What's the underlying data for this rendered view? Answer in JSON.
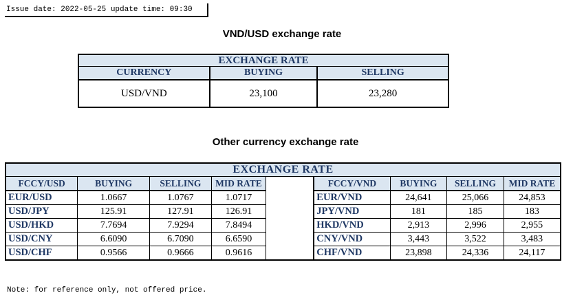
{
  "issue_line": "Issue date: 2022-05-25 update time: 09:30",
  "vnd_usd": {
    "heading": "VND/USD exchange rate",
    "band": "EXCHANGE RATE",
    "columns": [
      "CURRENCY",
      "BUYING",
      "SELLING"
    ],
    "row": {
      "currency": "USD/VND",
      "buying": "23,100",
      "selling": "23,280"
    }
  },
  "other": {
    "heading": "Other currency exchange rate",
    "band": "EXCHANGE  RATE",
    "left_columns": [
      "FCCY/USD",
      "BUYING",
      "SELLING",
      "MID RATE"
    ],
    "right_columns": [
      "FCCY/VND",
      "BUYING",
      "SELLING",
      "MID RATE"
    ],
    "rows": [
      {
        "l_pair": "EUR/USD",
        "l_buy": "1.0667",
        "l_sell": "1.0767",
        "l_mid": "1.0717",
        "r_pair": "EUR/VND",
        "r_buy": "24,641",
        "r_sell": "25,066",
        "r_mid": "24,853"
      },
      {
        "l_pair": "USD/JPY",
        "l_buy": "125.91",
        "l_sell": "127.91",
        "l_mid": "126.91",
        "r_pair": "JPY/VND",
        "r_buy": "181",
        "r_sell": "185",
        "r_mid": "183"
      },
      {
        "l_pair": "USD/HKD",
        "l_buy": "7.7694",
        "l_sell": "7.9294",
        "l_mid": "7.8494",
        "r_pair": "HKD/VND",
        "r_buy": "2,913",
        "r_sell": "2,996",
        "r_mid": "2,955"
      },
      {
        "l_pair": "USD/CNY",
        "l_buy": "6.6090",
        "l_sell": "6.7090",
        "l_mid": "6.6590",
        "r_pair": "CNY/VND",
        "r_buy": "3,443",
        "r_sell": "3,522",
        "r_mid": "3,483"
      },
      {
        "l_pair": "USD/CHF",
        "l_buy": "0.9566",
        "l_sell": "0.9666",
        "l_mid": "0.9616",
        "r_pair": "CHF/VND",
        "r_buy": "23,898",
        "r_sell": "24,336",
        "r_mid": "24,117"
      }
    ]
  },
  "note": "Note: for reference only, not offered price.",
  "colors": {
    "band_bg": "#dbe6f1",
    "header_text": "#1f3864"
  }
}
